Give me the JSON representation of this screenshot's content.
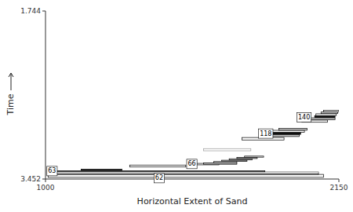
{
  "chart_data": {
    "type": "rectangles",
    "xlabel": "Horizontal Extent of Sand",
    "ylabel": "Time",
    "xlim": [
      1000,
      2150
    ],
    "ylim": [
      3.452,
      1.744
    ],
    "xticks": [
      1000,
      2150
    ],
    "yticks": [
      1.744,
      3.452
    ],
    "rectangles": [
      {
        "x": 1010,
        "y": 3.435,
        "width": 1080,
        "height": 0.03,
        "color": "white",
        "edge_color": "black"
      },
      {
        "x": 1010,
        "y": 3.405,
        "width": 1060,
        "height": 0.018,
        "color": "#bbbbbb",
        "edge_color": "black"
      },
      {
        "x": 1010,
        "y": 3.39,
        "width": 1060,
        "height": 0.012,
        "color": "white",
        "edge_color": "#888888"
      },
      {
        "x": 1010,
        "y": 3.378,
        "width": 850,
        "height": 0.01,
        "color": "#888888",
        "edge_color": "black"
      },
      {
        "x": 1140,
        "y": 3.363,
        "width": 160,
        "height": 0.01,
        "color": "#111111",
        "edge_color": "black"
      },
      {
        "x": 1330,
        "y": 3.33,
        "width": 220,
        "height": 0.02,
        "color": "white",
        "edge_color": "black"
      },
      {
        "x": 1560,
        "y": 3.308,
        "width": 120,
        "height": 0.015,
        "color": "white",
        "edge_color": "black"
      },
      {
        "x": 1620,
        "y": 3.302,
        "width": 130,
        "height": 0.014,
        "color": "#cccccc",
        "edge_color": "black"
      },
      {
        "x": 1660,
        "y": 3.286,
        "width": 90,
        "height": 0.012,
        "color": "white",
        "edge_color": "black"
      },
      {
        "x": 1690,
        "y": 3.273,
        "width": 100,
        "height": 0.012,
        "color": "#bbbbbb",
        "edge_color": "black"
      },
      {
        "x": 1720,
        "y": 3.258,
        "width": 90,
        "height": 0.012,
        "color": "white",
        "edge_color": "black"
      },
      {
        "x": 1750,
        "y": 3.244,
        "width": 80,
        "height": 0.012,
        "color": "#bbbbbb",
        "edge_color": "black"
      },
      {
        "x": 1780,
        "y": 3.23,
        "width": 75,
        "height": 0.011,
        "color": "white",
        "edge_color": "black"
      },
      {
        "x": 1620,
        "y": 3.165,
        "width": 185,
        "height": 0.022,
        "color": "white",
        "edge_color": "#999999"
      },
      {
        "x": 1770,
        "y": 3.055,
        "width": 165,
        "height": 0.025,
        "color": "white",
        "edge_color": "black"
      },
      {
        "x": 1840,
        "y": 3.02,
        "width": 155,
        "height": 0.022,
        "color": "#cccccc",
        "edge_color": "black"
      },
      {
        "x": 1870,
        "y": 2.998,
        "width": 130,
        "height": 0.02,
        "color": "#111111",
        "edge_color": "black"
      },
      {
        "x": 1885,
        "y": 2.977,
        "width": 130,
        "height": 0.02,
        "color": "white",
        "edge_color": "black"
      },
      {
        "x": 1915,
        "y": 2.956,
        "width": 110,
        "height": 0.018,
        "color": "#cccccc",
        "edge_color": "black"
      },
      {
        "x": 2005,
        "y": 2.875,
        "width": 100,
        "height": 0.022,
        "color": "white",
        "edge_color": "black"
      },
      {
        "x": 2035,
        "y": 2.85,
        "width": 100,
        "height": 0.02,
        "color": "#cccccc",
        "edge_color": "black"
      },
      {
        "x": 2055,
        "y": 2.826,
        "width": 80,
        "height": 0.018,
        "color": "#111111",
        "edge_color": "black"
      },
      {
        "x": 2060,
        "y": 2.807,
        "width": 80,
        "height": 0.018,
        "color": "white",
        "edge_color": "black"
      },
      {
        "x": 2080,
        "y": 2.787,
        "width": 65,
        "height": 0.016,
        "color": "#cccccc",
        "edge_color": "black"
      },
      {
        "x": 2090,
        "y": 2.768,
        "width": 60,
        "height": 0.015,
        "color": "white",
        "edge_color": "black"
      }
    ],
    "annotations": [
      {
        "text": "62",
        "x": 1430,
        "y": 3.443
      },
      {
        "text": "63",
        "x": 1010,
        "y": 3.371
      },
      {
        "text": "66",
        "x": 1558,
        "y": 3.299
      },
      {
        "text": "118",
        "x": 1840,
        "y": 2.99
      },
      {
        "text": "140",
        "x": 1990,
        "y": 2.825
      }
    ]
  }
}
